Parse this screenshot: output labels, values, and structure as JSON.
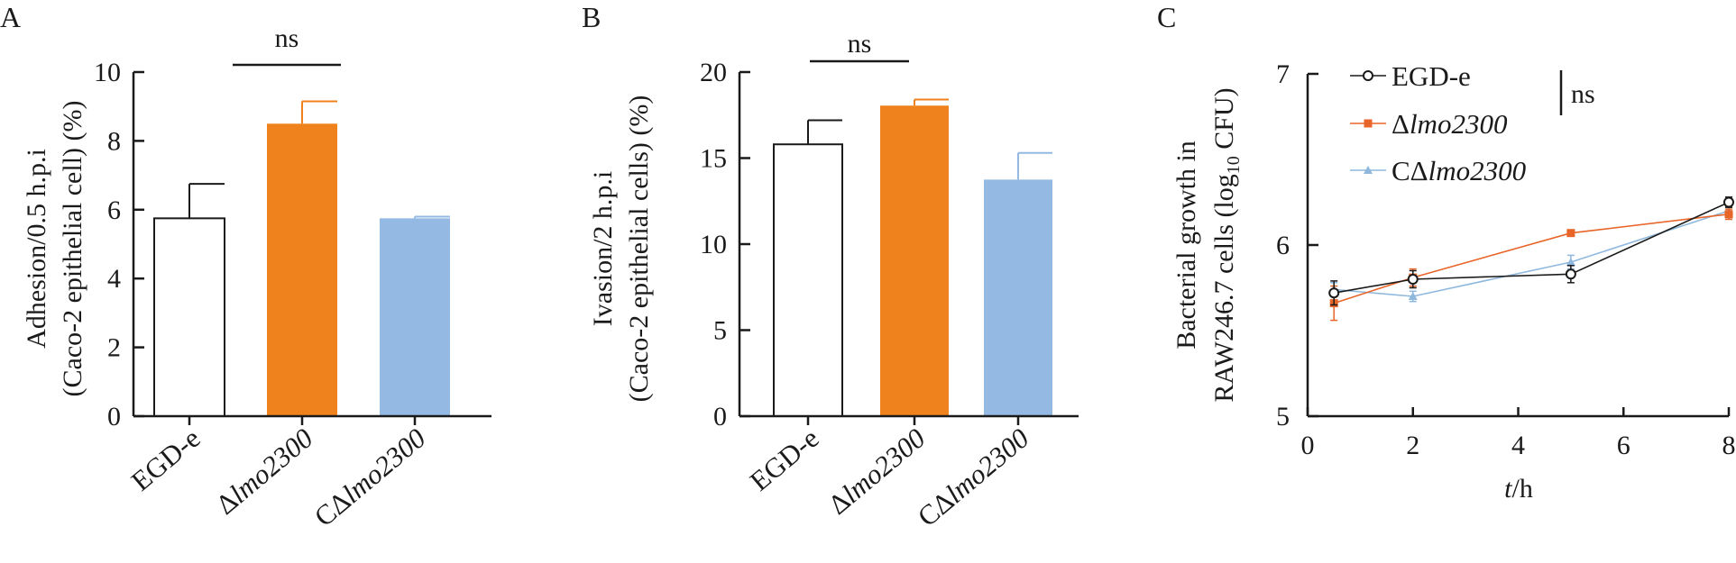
{
  "panels": [
    "A",
    "B",
    "C"
  ],
  "chart_data": [
    {
      "type": "bar",
      "panel": "A",
      "categories": [
        {
          "pre": "",
          "italic": "",
          "plain": "EGD-e"
        },
        {
          "pre": "Δ",
          "italic": "lmo2300",
          "plain": ""
        },
        {
          "pre": "CΔ",
          "italic": "lmo2300",
          "plain": ""
        }
      ],
      "values": [
        5.75,
        8.5,
        5.75
      ],
      "errors": [
        1.0,
        0.65,
        0.05
      ],
      "colors": [
        "#ffffff",
        "#f0821e",
        "#94b9e3"
      ],
      "ylabel_line1": "Adhesion/0.5 h.p.i",
      "ylabel_line2": "(Caco-2 epithelial cell) (%)",
      "ylim": [
        0,
        10
      ],
      "yticks": [
        0,
        2,
        4,
        6,
        8,
        10
      ],
      "significance": "ns"
    },
    {
      "type": "bar",
      "panel": "B",
      "categories": [
        {
          "pre": "",
          "italic": "",
          "plain": "EGD-e"
        },
        {
          "pre": "Δ",
          "italic": "lmo2300",
          "plain": ""
        },
        {
          "pre": "CΔ",
          "italic": "lmo2300",
          "plain": ""
        }
      ],
      "values": [
        15.8,
        18.05,
        13.75
      ],
      "errors": [
        1.4,
        0.35,
        1.55
      ],
      "colors": [
        "#ffffff",
        "#f0821e",
        "#94b9e3"
      ],
      "ylabel_line1": "Ivasion/2 h.p.i",
      "ylabel_line2": "(Caco-2 epithelial cells) (%)",
      "ylim": [
        0,
        20
      ],
      "yticks": [
        0,
        5,
        10,
        15,
        20
      ],
      "significance": "ns"
    },
    {
      "type": "line",
      "panel": "C",
      "x": [
        0.5,
        2,
        5,
        8
      ],
      "series": [
        {
          "name_pre": "",
          "name_italic": "",
          "name_plain": "EGD-e",
          "values": [
            5.72,
            5.8,
            5.83,
            6.25
          ],
          "errors": [
            0.07,
            0.05,
            0.05,
            0.03
          ],
          "color": "#1a1a1a",
          "marker": "open-circle"
        },
        {
          "name_pre": "Δ",
          "name_italic": "lmo2300",
          "name_plain": "",
          "values": [
            5.66,
            5.81,
            6.07,
            6.18
          ],
          "errors": [
            0.1,
            0.05,
            0.0,
            0.03
          ],
          "color": "#e8652a",
          "marker": "square"
        },
        {
          "name_pre": "CΔ",
          "name_italic": "lmo2300",
          "name_plain": "",
          "values": [
            5.74,
            5.7,
            5.9,
            6.2
          ],
          "errors": [
            0.04,
            0.03,
            0.04,
            0.04
          ],
          "color": "#8fb8de",
          "marker": "triangle"
        }
      ],
      "xlabel_italic": "t",
      "xlabel_plain": "/h",
      "ylabel_line1": "Bacterial growth in",
      "ylabel_line2_pre": "RAW246.7 cells (log",
      "ylabel_line2_sub": "10",
      "ylabel_line2_post": " CFU)",
      "xlim": [
        0,
        8
      ],
      "xticks": [
        0,
        2,
        4,
        6,
        8
      ],
      "ylim": [
        5,
        7
      ],
      "yticks": [
        5,
        6,
        7
      ],
      "legend_position": "top-left",
      "significance": "ns"
    }
  ]
}
